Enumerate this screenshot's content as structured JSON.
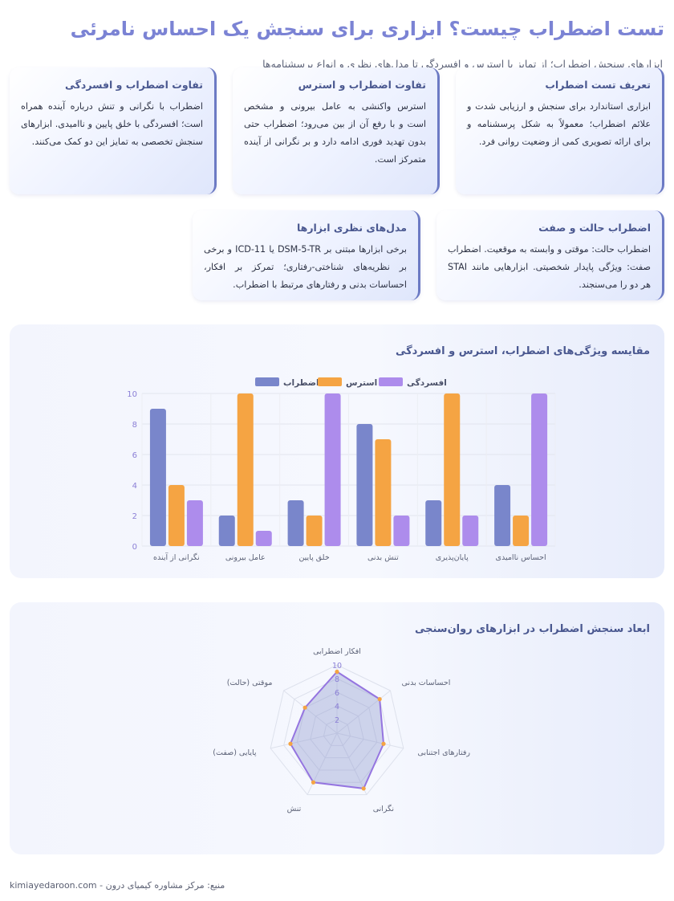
{
  "header": {
    "title": "تست اضطراب چیست؟ ابزاری برای سنجش یک احساس نامرئی",
    "subtitle": "ابزارهای سنجش اضطراب؛ از تمایز با استرس و افسردگی تا مدل‌های نظری و انواع پرسشنامه‌ها"
  },
  "cards": [
    {
      "title": "تعریف تست اضطراب",
      "text": "ابزاری استاندارد برای سنجش و ارزیابی شدت و علائم اضطراب؛ معمولاً به شکل پرسشنامه و برای ارائه تصویری کمی از وضعیت روانی فرد."
    },
    {
      "title": "تفاوت اضطراب و استرس",
      "text": "استرس واکنشی به عامل بیرونی و مشخص است و با رفع آن از بین می‌رود؛ اضطراب حتی بدون تهدید فوری ادامه دارد و بر نگرانی از آینده متمرکز است."
    },
    {
      "title": "تفاوت اضطراب و افسردگی",
      "text": "اضطراب با نگرانی و تنش درباره آینده همراه است؛ افسردگی با خلق پایین و ناامیدی. ابزارهای سنجش تخصصی به تمایز این دو کمک می‌کنند."
    },
    {
      "title": "اضطراب حالت و صفت",
      "text": "اضطراب حالت: موقتی و وابسته به موقعیت. اضطراب صفت: ویژگی پایدار شخصیتی. ابزارهایی مانند STAI هر دو را می‌سنجند."
    },
    {
      "title": "مدل‌های نظری ابزارها",
      "text": "برخی ابزارها مبتنی بر DSM-5-TR یا ICD-11 و برخی بر نظریه‌های شناختی-رفتاری؛ تمرکز بر افکار، احساسات بدنی و رفتارهای مرتبط با اضطراب."
    }
  ],
  "sections": {
    "bar_title": "مقایسه ویژگی‌های اضطراب، استرس و افسردگی",
    "radar_title": "ابعاد سنجش اضطراب در ابزارهای روان‌سنجی"
  },
  "colors": {
    "anxiety": "#7986cb",
    "stress": "#f5a443",
    "depression": "#ad8cec",
    "radar_line": "#9575e0",
    "radar_point": "#f5a443"
  },
  "chart_data": [
    {
      "type": "bar",
      "title": "مقایسه ویژگی‌های اضطراب، استرس و افسردگی",
      "categories": [
        "نگرانی از آینده",
        "عامل بیرونی",
        "خلق پایین",
        "تنش بدنی",
        "پایان‌پذیری",
        "احساس ناامیدی"
      ],
      "series": [
        {
          "name": "اضطراب",
          "values": [
            9,
            2,
            3,
            8,
            3,
            4
          ]
        },
        {
          "name": "استرس",
          "values": [
            4,
            10,
            2,
            7,
            10,
            2
          ]
        },
        {
          "name": "افسردگی",
          "values": [
            3,
            1,
            10,
            2,
            2,
            10
          ]
        }
      ],
      "ylim": [
        0,
        10
      ],
      "yticks": [
        "0",
        "2",
        "4",
        "6",
        "8",
        "10"
      ],
      "legend": "top",
      "grid": true
    },
    {
      "type": "radar",
      "title": "ابعاد سنجش اضطراب در ابزارهای روان‌سنجی",
      "axes": [
        "افکار اضطرابی",
        "احساسات بدنی",
        "رفتارهای اجتنابی",
        "نگرانی",
        "تنش",
        "پایایی (صفت)",
        "موقتی (حالت)"
      ],
      "values": [
        9,
        8,
        7,
        9,
        8,
        7,
        6
      ],
      "rlim": [
        0,
        10
      ],
      "rticks": [
        "2",
        "4",
        "6",
        "8",
        "10"
      ]
    }
  ],
  "footer": {
    "text": "منبع: مرکز مشاوره کیمیای درون - kimiayedaroon.com"
  }
}
